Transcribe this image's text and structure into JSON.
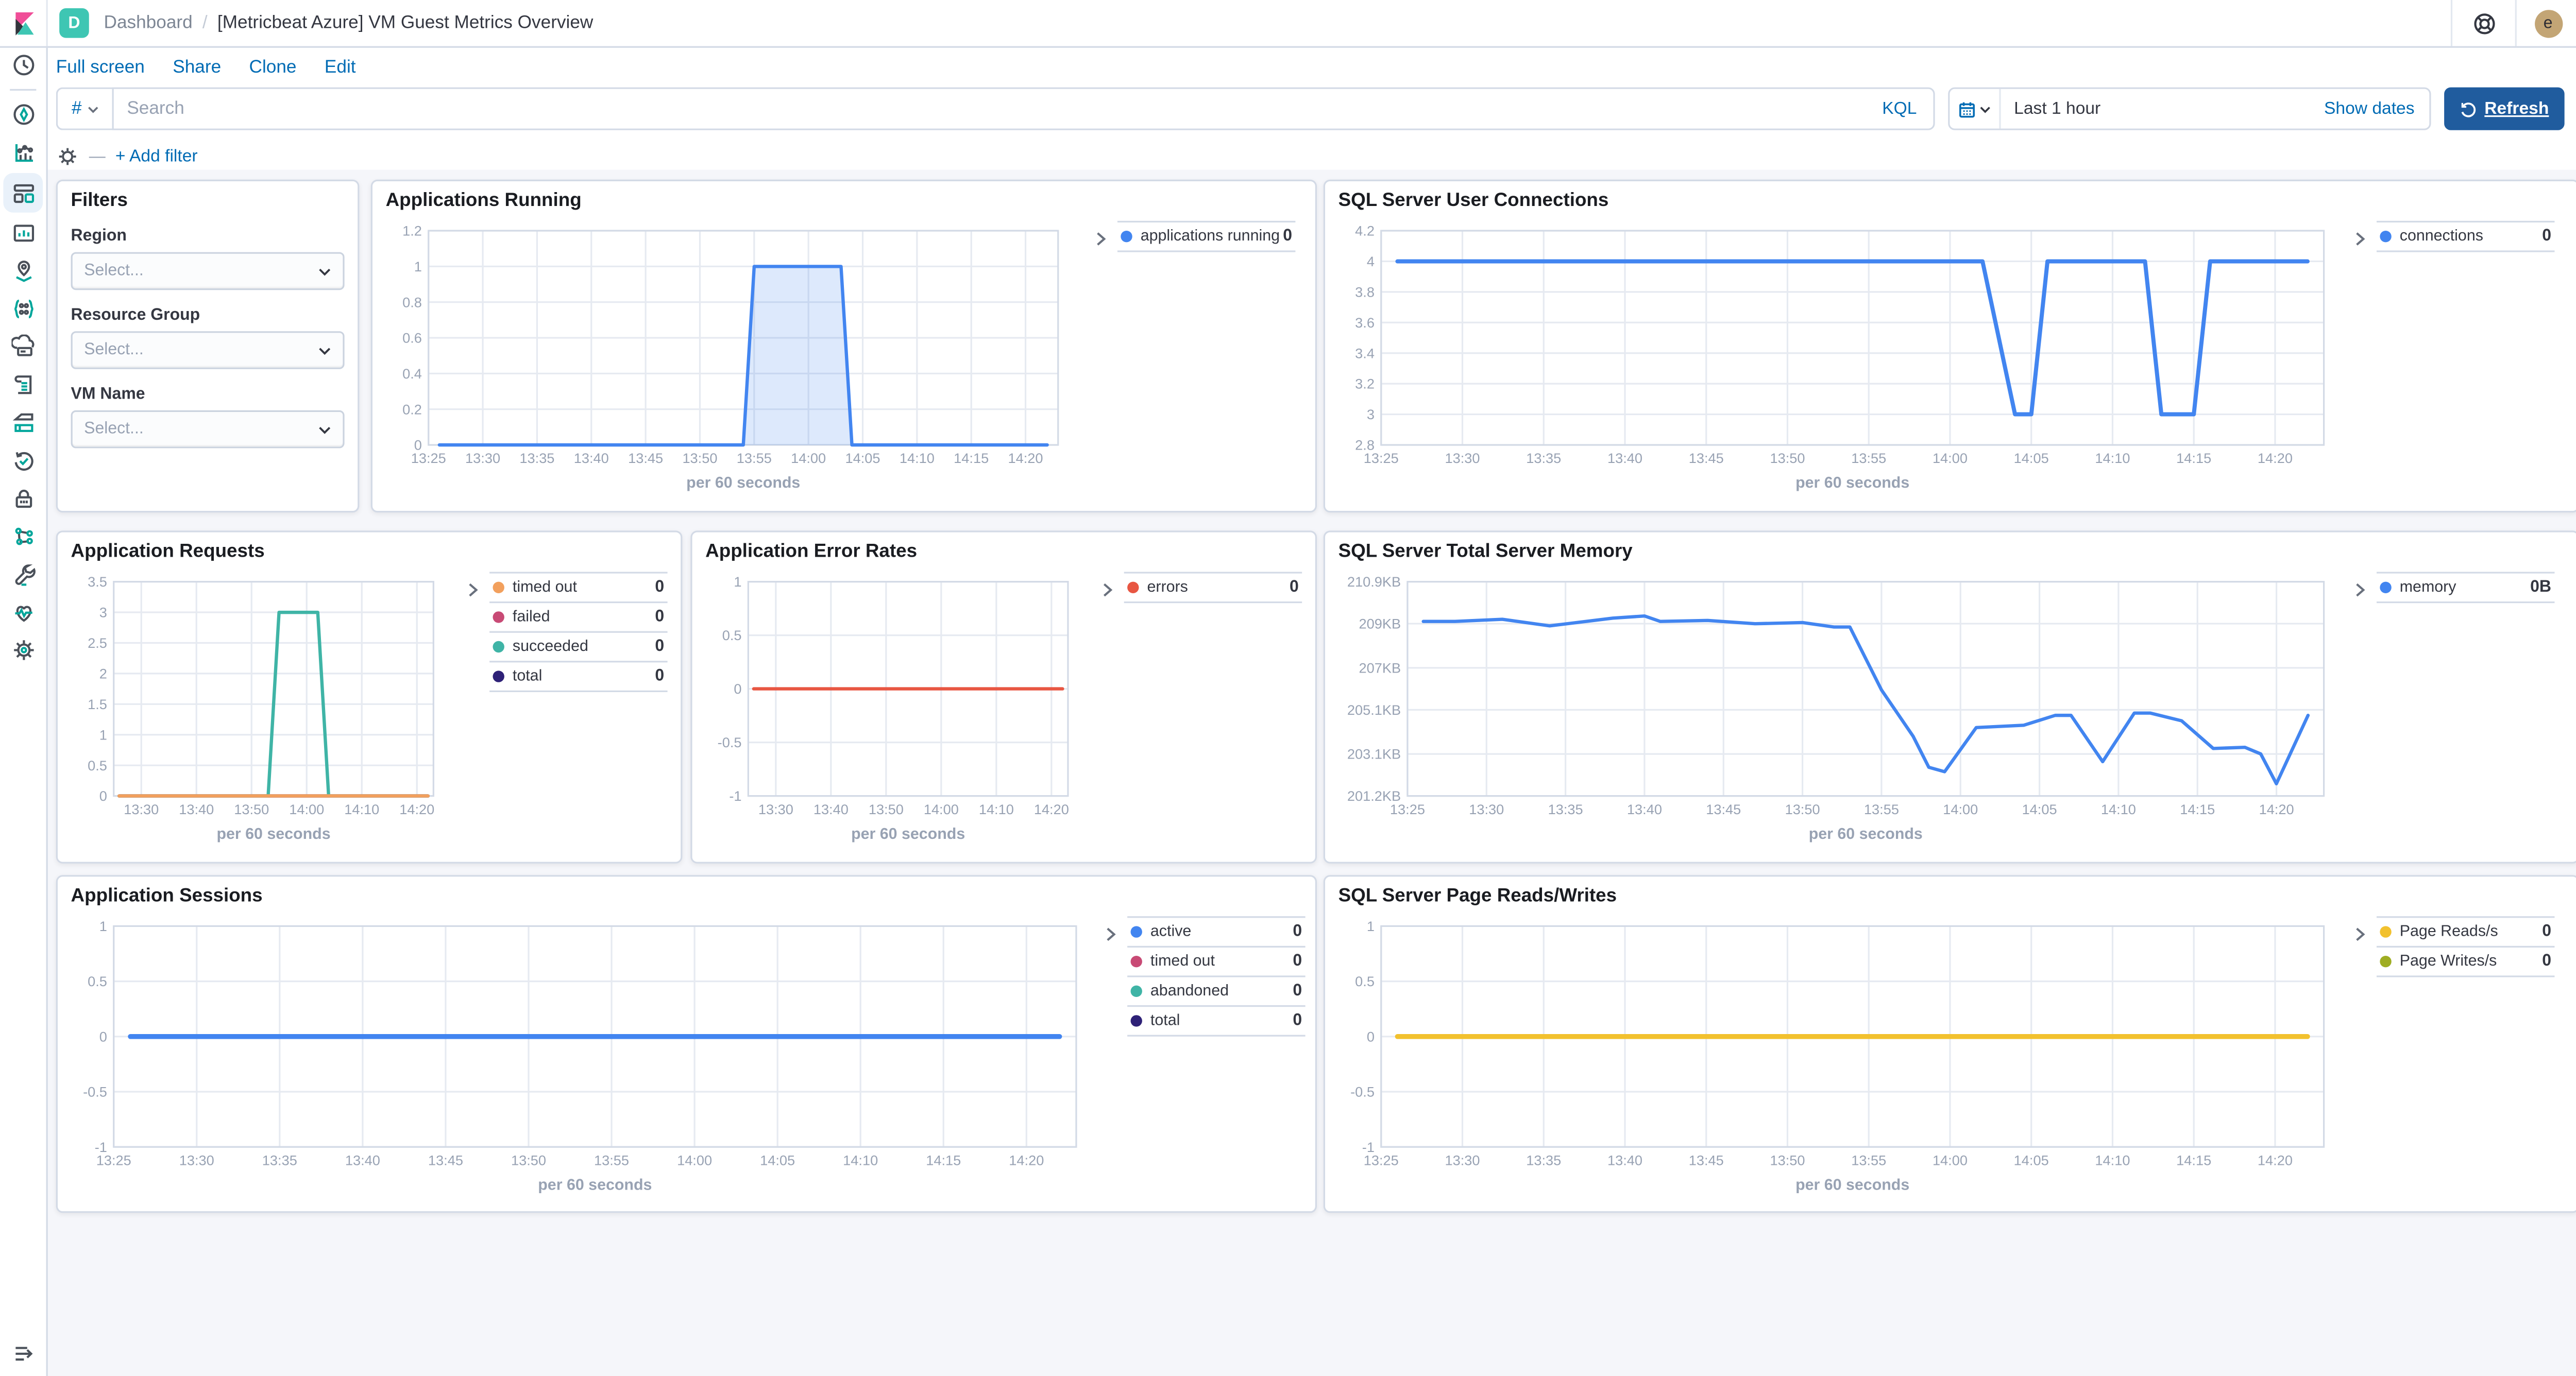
{
  "header": {
    "app_badge": "D",
    "breadcrumb_root": "Dashboard",
    "breadcrumb_separator": "/",
    "title": "[Metricbeat Azure] VM Guest Metrics Overview",
    "user_initial": "e"
  },
  "toolbar": {
    "full_screen": "Full screen",
    "share": "Share",
    "clone": "Clone",
    "edit": "Edit"
  },
  "search": {
    "filter_symbol": "#",
    "placeholder": "Search",
    "language": "KQL"
  },
  "time_picker": {
    "range": "Last 1 hour",
    "show_dates": "Show dates",
    "refresh_label": "Refresh"
  },
  "filter_bar": {
    "add_filter_label": "+ Add filter"
  },
  "sidebar": {
    "icons": [
      "recently-viewed",
      "discover",
      "visualize",
      "dashboard",
      "canvas",
      "maps",
      "machine-learning",
      "hosts",
      "logs",
      "metrics",
      "uptime",
      "security",
      "apm",
      "dev-tools",
      "stack-monitoring",
      "stack-management"
    ],
    "active": "dashboard"
  },
  "colors": {
    "blue": "#4285F0",
    "teal": "#3FB4A6",
    "orange": "#F2A05D",
    "pink": "#C84A75",
    "purple": "#2E2177",
    "red": "#E85642",
    "yellow": "#F2C12E",
    "olive": "#9FAD23",
    "link": "#006BB4"
  },
  "panels": {
    "filters": {
      "title": "Filters",
      "fields": [
        {
          "label": "Region",
          "placeholder": "Select..."
        },
        {
          "label": "Resource Group",
          "placeholder": "Select..."
        },
        {
          "label": "VM Name",
          "placeholder": "Select..."
        }
      ]
    },
    "apps_running": {
      "title": "Applications Running",
      "legend": [
        {
          "label": "applications running",
          "value": "0",
          "color": "#4285F0"
        }
      ],
      "chart_data": {
        "type": "area",
        "xlabel": "per 60 seconds",
        "xdomain": [
          "13:25",
          "14:23"
        ],
        "xticks": [
          "13:25",
          "13:30",
          "13:35",
          "13:40",
          "13:45",
          "13:50",
          "13:55",
          "14:00",
          "14:05",
          "14:10",
          "14:15",
          "14:20"
        ],
        "ylim": [
          0,
          1.2
        ],
        "yticks": [
          {
            "v": 0,
            "label": "0"
          },
          {
            "v": 0.2,
            "label": "0.2"
          },
          {
            "v": 0.4,
            "label": "0.4"
          },
          {
            "v": 0.6,
            "label": "0.6"
          },
          {
            "v": 0.8,
            "label": "0.8"
          },
          {
            "v": 1,
            "label": "1"
          },
          {
            "v": 1.2,
            "label": "1.2"
          }
        ],
        "series": [
          {
            "name": "applications running",
            "color": "#4285F0",
            "width": 2,
            "fill": true,
            "points": [
              [
                "13:26",
                0
              ],
              [
                "13:54",
                0
              ],
              [
                "13:55",
                1
              ],
              [
                "14:03",
                1
              ],
              [
                "14:04",
                0
              ],
              [
                "14:22",
                0
              ]
            ]
          }
        ]
      }
    },
    "connections": {
      "title": "SQL Server User Connections",
      "legend": [
        {
          "label": "connections",
          "value": "0",
          "color": "#4285F0"
        }
      ],
      "chart_data": {
        "type": "line",
        "xlabel": "per 60 seconds",
        "xdomain": [
          "13:25",
          "14:23"
        ],
        "xticks": [
          "13:25",
          "13:30",
          "13:35",
          "13:40",
          "13:45",
          "13:50",
          "13:55",
          "14:00",
          "14:05",
          "14:10",
          "14:15",
          "14:20"
        ],
        "ylim": [
          2.8,
          4.2
        ],
        "yticks": [
          {
            "v": 2.8,
            "label": "2.8"
          },
          {
            "v": 3,
            "label": "3"
          },
          {
            "v": 3.2,
            "label": "3.2"
          },
          {
            "v": 3.4,
            "label": "3.4"
          },
          {
            "v": 3.6,
            "label": "3.6"
          },
          {
            "v": 3.8,
            "label": "3.8"
          },
          {
            "v": 4,
            "label": "4"
          },
          {
            "v": 4.2,
            "label": "4.2"
          }
        ],
        "series": [
          {
            "name": "connections",
            "color": "#4285F0",
            "width": 2.5,
            "points": [
              [
                "13:26",
                4
              ],
              [
                "14:02",
                4
              ],
              [
                "14:04",
                3
              ],
              [
                "14:05",
                3
              ],
              [
                "14:06",
                4
              ],
              [
                "14:12",
                4
              ],
              [
                "14:13",
                3
              ],
              [
                "14:15",
                3
              ],
              [
                "14:16",
                4
              ],
              [
                "14:22",
                4
              ]
            ]
          }
        ]
      }
    },
    "requests": {
      "title": "Application Requests",
      "legend": [
        {
          "label": "timed out",
          "value": "0",
          "color": "#F2A05D"
        },
        {
          "label": "failed",
          "value": "0",
          "color": "#C84A75"
        },
        {
          "label": "succeeded",
          "value": "0",
          "color": "#3FB4A6"
        },
        {
          "label": "total",
          "value": "0",
          "color": "#2E2177"
        }
      ],
      "chart_data": {
        "type": "line",
        "xlabel": "per 60 seconds",
        "xdomain": [
          "13:25",
          "14:23"
        ],
        "xticks": [
          "13:30",
          "13:40",
          "13:50",
          "14:00",
          "14:10",
          "14:20"
        ],
        "ylim": [
          0,
          3.5
        ],
        "yticks": [
          {
            "v": 0,
            "label": "0"
          },
          {
            "v": 0.5,
            "label": "0.5"
          },
          {
            "v": 1,
            "label": "1"
          },
          {
            "v": 1.5,
            "label": "1.5"
          },
          {
            "v": 2,
            "label": "2"
          },
          {
            "v": 2.5,
            "label": "2.5"
          },
          {
            "v": 3,
            "label": "3"
          },
          {
            "v": 3.5,
            "label": "3.5"
          }
        ],
        "series": [
          {
            "name": "failed",
            "color": "#C84A75",
            "width": 2,
            "points": [
              [
                "13:26",
                0
              ],
              [
                "14:22",
                0
              ]
            ]
          },
          {
            "name": "total",
            "color": "#2E2177",
            "width": 2,
            "points": [
              [
                "13:26",
                0
              ],
              [
                "14:22",
                0
              ]
            ]
          },
          {
            "name": "succeeded",
            "color": "#3FB4A6",
            "width": 2,
            "points": [
              [
                "13:26",
                0
              ],
              [
                "13:53",
                0
              ],
              [
                "13:55",
                3
              ],
              [
                "14:02",
                3
              ],
              [
                "14:04",
                0
              ],
              [
                "14:22",
                0
              ]
            ]
          },
          {
            "name": "timed out",
            "color": "#F2A05D",
            "width": 2,
            "points": [
              [
                "13:26",
                0
              ],
              [
                "14:22",
                0
              ]
            ]
          }
        ]
      }
    },
    "errors": {
      "title": "Application Error Rates",
      "legend": [
        {
          "label": "errors",
          "value": "0",
          "color": "#E85642"
        }
      ],
      "chart_data": {
        "type": "line",
        "xlabel": "per 60 seconds",
        "xdomain": [
          "13:25",
          "14:23"
        ],
        "xticks": [
          "13:30",
          "13:40",
          "13:50",
          "14:00",
          "14:10",
          "14:20"
        ],
        "ylim": [
          -1,
          1
        ],
        "yticks": [
          {
            "v": -1,
            "label": "-1"
          },
          {
            "v": -0.5,
            "label": "-0.5"
          },
          {
            "v": 0,
            "label": "0"
          },
          {
            "v": 0.5,
            "label": "0.5"
          },
          {
            "v": 1,
            "label": "1"
          }
        ],
        "series": [
          {
            "name": "errors",
            "color": "#E85642",
            "width": 2,
            "points": [
              [
                "13:26",
                0
              ],
              [
                "14:22",
                0
              ]
            ]
          }
        ]
      }
    },
    "memory": {
      "title": "SQL Server Total Server Memory",
      "legend": [
        {
          "label": "memory",
          "value": "0B",
          "color": "#4285F0"
        }
      ],
      "chart_data": {
        "type": "line",
        "xlabel": "per 60 seconds",
        "xdomain": [
          "13:25",
          "14:23"
        ],
        "xticks": [
          "13:25",
          "13:30",
          "13:35",
          "13:40",
          "13:45",
          "13:50",
          "13:55",
          "14:00",
          "14:05",
          "14:10",
          "14:15",
          "14:20"
        ],
        "ylim": [
          201.2,
          210.9
        ],
        "yticks": [
          {
            "v": 201.2,
            "label": "201.2KB"
          },
          {
            "v": 203.1,
            "label": "203.1KB"
          },
          {
            "v": 205.1,
            "label": "205.1KB"
          },
          {
            "v": 207,
            "label": "207KB"
          },
          {
            "v": 209,
            "label": "209KB"
          },
          {
            "v": 210.9,
            "label": "210.9KB"
          }
        ],
        "pad_left": 46,
        "series": [
          {
            "name": "memory",
            "color": "#4285F0",
            "width": 2,
            "points": [
              [
                "13:26",
                209.1
              ],
              [
                "13:28",
                209.1
              ],
              [
                "13:31",
                209.2
              ],
              [
                "13:34",
                208.9
              ],
              [
                "13:38",
                209.25
              ],
              [
                "13:40",
                209.35
              ],
              [
                "13:41",
                209.1
              ],
              [
                "13:44",
                209.15
              ],
              [
                "13:47",
                209.0
              ],
              [
                "13:50",
                209.05
              ],
              [
                "13:52",
                208.85
              ],
              [
                "13:53",
                208.85
              ],
              [
                "13:55",
                206.0
              ],
              [
                "13:57",
                203.9
              ],
              [
                "13:58",
                202.5
              ],
              [
                "13:59",
                202.3
              ],
              [
                "14:01",
                204.3
              ],
              [
                "14:04",
                204.4
              ],
              [
                "14:06",
                204.85
              ],
              [
                "14:07",
                204.85
              ],
              [
                "14:09",
                202.75
              ],
              [
                "14:11",
                204.95
              ],
              [
                "14:12",
                204.95
              ],
              [
                "14:14",
                204.6
              ],
              [
                "14:16",
                203.35
              ],
              [
                "14:18",
                203.4
              ],
              [
                "14:19",
                203.1
              ],
              [
                "14:20",
                201.75
              ],
              [
                "14:22",
                204.85
              ]
            ]
          }
        ]
      }
    },
    "sessions": {
      "title": "Application Sessions",
      "legend": [
        {
          "label": "active",
          "value": "0",
          "color": "#4285F0"
        },
        {
          "label": "timed out",
          "value": "0",
          "color": "#C84A75"
        },
        {
          "label": "abandoned",
          "value": "0",
          "color": "#3FB4A6"
        },
        {
          "label": "total",
          "value": "0",
          "color": "#2E2177"
        }
      ],
      "chart_data": {
        "type": "line",
        "xlabel": "per 60 seconds",
        "xdomain": [
          "13:25",
          "14:23"
        ],
        "xticks": [
          "13:25",
          "13:30",
          "13:35",
          "13:40",
          "13:45",
          "13:50",
          "13:55",
          "14:00",
          "14:05",
          "14:10",
          "14:15",
          "14:20"
        ],
        "ylim": [
          -1,
          1
        ],
        "yticks": [
          {
            "v": -1,
            "label": "-1"
          },
          {
            "v": -0.5,
            "label": "-0.5"
          },
          {
            "v": 0,
            "label": "0"
          },
          {
            "v": 0.5,
            "label": "0.5"
          },
          {
            "v": 1,
            "label": "1"
          }
        ],
        "series": [
          {
            "name": "total",
            "color": "#2E2177",
            "width": 2,
            "points": [
              [
                "13:26",
                0
              ],
              [
                "14:22",
                0
              ]
            ]
          },
          {
            "name": "abandoned",
            "color": "#3FB4A6",
            "width": 2,
            "points": [
              [
                "13:26",
                0
              ],
              [
                "14:22",
                0
              ]
            ]
          },
          {
            "name": "timed out",
            "color": "#C84A75",
            "width": 2,
            "points": [
              [
                "13:26",
                0
              ],
              [
                "14:22",
                0
              ]
            ]
          },
          {
            "name": "active",
            "color": "#4285F0",
            "width": 3,
            "points": [
              [
                "13:26",
                0
              ],
              [
                "14:22",
                0
              ]
            ]
          }
        ]
      }
    },
    "page_rw": {
      "title": "SQL Server Page Reads/Writes",
      "legend": [
        {
          "label": "Page Reads/s",
          "value": "0",
          "color": "#F2C12E"
        },
        {
          "label": "Page Writes/s",
          "value": "0",
          "color": "#9FAD23"
        }
      ],
      "chart_data": {
        "type": "line",
        "xlabel": "per 60 seconds",
        "xdomain": [
          "13:25",
          "14:23"
        ],
        "xticks": [
          "13:25",
          "13:30",
          "13:35",
          "13:40",
          "13:45",
          "13:50",
          "13:55",
          "14:00",
          "14:05",
          "14:10",
          "14:15",
          "14:20"
        ],
        "ylim": [
          -1,
          1
        ],
        "yticks": [
          {
            "v": -1,
            "label": "-1"
          },
          {
            "v": -0.5,
            "label": "-0.5"
          },
          {
            "v": 0,
            "label": "0"
          },
          {
            "v": 0.5,
            "label": "0.5"
          },
          {
            "v": 1,
            "label": "1"
          }
        ],
        "series": [
          {
            "name": "Page Writes/s",
            "color": "#9FAD23",
            "width": 2,
            "points": [
              [
                "13:26",
                0
              ],
              [
                "14:22",
                0
              ]
            ]
          },
          {
            "name": "Page Reads/s",
            "color": "#F2C12E",
            "width": 3,
            "points": [
              [
                "13:26",
                0
              ],
              [
                "14:22",
                0
              ]
            ]
          }
        ]
      }
    }
  }
}
